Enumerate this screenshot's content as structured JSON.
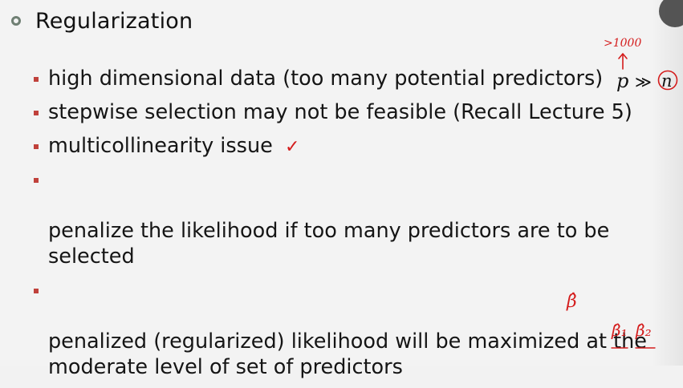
{
  "slide": {
    "title": "Regularization",
    "bullets": [
      "high dimensional data (too many potential predictors)",
      "stepwise selection may not be feasible (Recall Lecture 5)",
      "multicollinearity issue",
      "penalize the likelihood if too many predictors are to be\nselected",
      "penalized (regularized) likelihood will be maximized at the\nmoderate level of set of predictors"
    ],
    "math": {
      "p": "p",
      "gg": "≫",
      "n": "n"
    }
  },
  "annotations": {
    "over_p": ">1000",
    "check": "✓",
    "beta_hat": "β̂",
    "beta1_hat": "β̂₁",
    "beta2_hat": "β̂₂"
  },
  "colors": {
    "bullet_marker": "#c0413b",
    "title_bullet": "#6f7f73",
    "handwriting": "#d41c1c"
  }
}
